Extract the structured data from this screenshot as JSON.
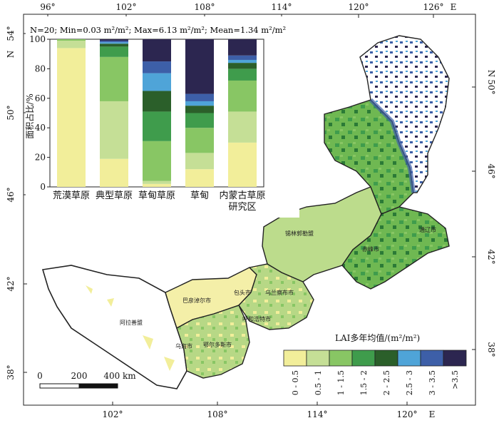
{
  "frame": {
    "top_ticks": [
      "96°",
      "102°",
      "108°",
      "114°",
      "120°",
      "126°",
      "E"
    ],
    "bottom_ticks": [
      "102°",
      "108°",
      "114°",
      "120°",
      "E"
    ],
    "left_ticks": [
      "54°",
      "N",
      "50°",
      "46°",
      "42°",
      "38°"
    ],
    "right_ticks": [
      "N",
      "50°",
      "46°",
      "42°",
      "38°"
    ]
  },
  "inset": {
    "stats_label": "N=20; Min=0.03 m²/m²; Max=6.13 m²/m²; Mean=1.34 m²/m²",
    "ylabel": "面积占比/%",
    "yticks": [
      "0",
      "20",
      "40",
      "60",
      "80",
      "100"
    ]
  },
  "chart_data": {
    "type": "bar",
    "stacked": true,
    "ylabel": "面积占比/%",
    "ylim": [
      0,
      100
    ],
    "categories": [
      "荒漠草原",
      "典型草原",
      "草甸草原",
      "草甸",
      "内蒙古草原研究区"
    ],
    "series": [
      {
        "name": "0 - 0.5",
        "color": "#f2ee9a",
        "values": [
          94,
          19,
          2,
          12,
          30
        ]
      },
      {
        "name": "0.5 - 1",
        "color": "#c5df96",
        "values": [
          5,
          39,
          2,
          11,
          21
        ]
      },
      {
        "name": "1 - 1.5",
        "color": "#88c664",
        "values": [
          1,
          30,
          27,
          17,
          21
        ]
      },
      {
        "name": "1.5 - 2",
        "color": "#3f9c4c",
        "values": [
          0,
          7,
          20,
          10,
          8
        ]
      },
      {
        "name": "2 - 2.5",
        "color": "#2b5f2a",
        "values": [
          0,
          2,
          14,
          5,
          4
        ]
      },
      {
        "name": "2.5 - 3",
        "color": "#4fa4d8",
        "values": [
          0,
          1,
          12,
          3,
          2
        ]
      },
      {
        "name": "3 - 3.5",
        "color": "#3d5fa8",
        "values": [
          0,
          1,
          8,
          5,
          3
        ]
      },
      {
        "name": ">3.5",
        "color": "#2c2650",
        "values": [
          0,
          1,
          15,
          37,
          11
        ]
      }
    ]
  },
  "legend": {
    "title": "LAI多年均值/(m²/m²)",
    "items": [
      {
        "label": "0 - 0.5",
        "color": "#f2ee9a"
      },
      {
        "label": "0.5 - 1",
        "color": "#c5df96"
      },
      {
        "label": "1 - 1.5",
        "color": "#88c664"
      },
      {
        "label": "1.5 - 2",
        "color": "#3f9c4c"
      },
      {
        "label": "2 - 2.5",
        "color": "#2b5f2a"
      },
      {
        "label": "2.5 - 3",
        "color": "#4fa4d8"
      },
      {
        "label": "3 - 3.5",
        "color": "#3d5fa8"
      },
      {
        "label": ">3.5",
        "color": "#2c2650"
      }
    ]
  },
  "scale_bar": {
    "labels": [
      "0",
      "200",
      "400 km"
    ]
  },
  "places": [
    "锡林郭勒盟",
    "赤峰市",
    "通辽市",
    "乌兰察布市",
    "包头市",
    "巴彦淖尔市",
    "呼和浩特市",
    "阿拉善盟",
    "乌海市",
    "鄂尔多斯市"
  ]
}
